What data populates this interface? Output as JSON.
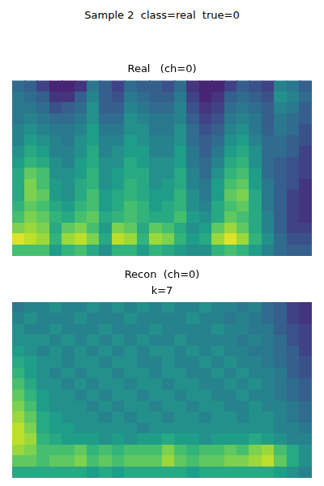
{
  "title": "Sample 2  class=real  true=0",
  "chart_data": [
    {
      "type": "heatmap",
      "title": "Real   (ch=0)",
      "tick_labels": false,
      "zlim": [
        0,
        1
      ],
      "cells": [
        [
          0.35,
          0.3,
          0.2,
          0.1,
          0.1,
          0.15,
          0.4,
          0.3,
          0.2,
          0.35,
          0.3,
          0.3,
          0.25,
          0.35,
          0.15,
          0.1,
          0.1,
          0.2,
          0.3,
          0.25,
          0.2,
          0.45,
          0.4,
          0.3
        ],
        [
          0.4,
          0.35,
          0.3,
          0.15,
          0.15,
          0.3,
          0.45,
          0.3,
          0.25,
          0.4,
          0.35,
          0.3,
          0.3,
          0.4,
          0.2,
          0.1,
          0.15,
          0.3,
          0.35,
          0.3,
          0.25,
          0.5,
          0.45,
          0.35
        ],
        [
          0.4,
          0.4,
          0.35,
          0.25,
          0.3,
          0.35,
          0.5,
          0.3,
          0.3,
          0.45,
          0.4,
          0.35,
          0.35,
          0.45,
          0.25,
          0.15,
          0.2,
          0.35,
          0.4,
          0.35,
          0.3,
          0.45,
          0.4,
          0.3
        ],
        [
          0.4,
          0.45,
          0.4,
          0.35,
          0.35,
          0.4,
          0.5,
          0.35,
          0.35,
          0.5,
          0.45,
          0.4,
          0.4,
          0.45,
          0.3,
          0.2,
          0.25,
          0.4,
          0.45,
          0.4,
          0.3,
          0.4,
          0.35,
          0.3
        ],
        [
          0.45,
          0.5,
          0.45,
          0.4,
          0.4,
          0.45,
          0.55,
          0.4,
          0.4,
          0.5,
          0.5,
          0.4,
          0.4,
          0.5,
          0.35,
          0.25,
          0.3,
          0.45,
          0.5,
          0.4,
          0.3,
          0.4,
          0.35,
          0.25
        ],
        [
          0.45,
          0.55,
          0.5,
          0.45,
          0.4,
          0.5,
          0.55,
          0.45,
          0.45,
          0.55,
          0.5,
          0.45,
          0.45,
          0.5,
          0.35,
          0.3,
          0.35,
          0.5,
          0.55,
          0.45,
          0.35,
          0.35,
          0.3,
          0.25
        ],
        [
          0.5,
          0.6,
          0.55,
          0.45,
          0.45,
          0.5,
          0.6,
          0.45,
          0.5,
          0.55,
          0.55,
          0.45,
          0.45,
          0.55,
          0.4,
          0.3,
          0.4,
          0.55,
          0.6,
          0.5,
          0.35,
          0.35,
          0.3,
          0.2
        ],
        [
          0.55,
          0.65,
          0.6,
          0.5,
          0.45,
          0.55,
          0.6,
          0.5,
          0.5,
          0.6,
          0.55,
          0.5,
          0.5,
          0.55,
          0.4,
          0.35,
          0.45,
          0.6,
          0.65,
          0.5,
          0.35,
          0.3,
          0.25,
          0.2
        ],
        [
          0.6,
          0.75,
          0.7,
          0.5,
          0.5,
          0.55,
          0.65,
          0.5,
          0.55,
          0.6,
          0.6,
          0.5,
          0.5,
          0.6,
          0.45,
          0.35,
          0.5,
          0.65,
          0.7,
          0.55,
          0.35,
          0.3,
          0.25,
          0.2
        ],
        [
          0.6,
          0.8,
          0.7,
          0.55,
          0.5,
          0.6,
          0.65,
          0.5,
          0.55,
          0.65,
          0.6,
          0.5,
          0.55,
          0.6,
          0.45,
          0.4,
          0.55,
          0.7,
          0.75,
          0.55,
          0.4,
          0.3,
          0.25,
          0.15
        ],
        [
          0.6,
          0.8,
          0.75,
          0.55,
          0.5,
          0.6,
          0.7,
          0.55,
          0.6,
          0.65,
          0.6,
          0.55,
          0.55,
          0.65,
          0.5,
          0.4,
          0.55,
          0.75,
          0.8,
          0.6,
          0.4,
          0.3,
          0.2,
          0.15
        ],
        [
          0.65,
          0.75,
          0.7,
          0.6,
          0.55,
          0.65,
          0.7,
          0.55,
          0.6,
          0.7,
          0.65,
          0.55,
          0.6,
          0.65,
          0.5,
          0.45,
          0.6,
          0.7,
          0.75,
          0.6,
          0.4,
          0.3,
          0.2,
          0.15
        ],
        [
          0.7,
          0.8,
          0.75,
          0.65,
          0.6,
          0.7,
          0.75,
          0.6,
          0.65,
          0.7,
          0.65,
          0.6,
          0.6,
          0.7,
          0.55,
          0.5,
          0.6,
          0.75,
          0.7,
          0.6,
          0.45,
          0.3,
          0.2,
          0.15
        ],
        [
          0.8,
          0.85,
          0.8,
          0.6,
          0.75,
          0.8,
          0.7,
          0.55,
          0.8,
          0.75,
          0.6,
          0.75,
          0.7,
          0.6,
          0.5,
          0.55,
          0.75,
          0.85,
          0.75,
          0.6,
          0.45,
          0.3,
          0.2,
          0.2
        ],
        [
          0.95,
          0.9,
          0.85,
          0.65,
          0.85,
          0.9,
          0.8,
          0.6,
          0.9,
          0.85,
          0.65,
          0.85,
          0.8,
          0.65,
          0.55,
          0.6,
          0.85,
          0.95,
          0.85,
          0.65,
          0.5,
          0.35,
          0.25,
          0.25
        ],
        [
          0.7,
          0.7,
          0.7,
          0.55,
          0.65,
          0.7,
          0.6,
          0.5,
          0.65,
          0.65,
          0.55,
          0.65,
          0.6,
          0.55,
          0.5,
          0.5,
          0.65,
          0.7,
          0.65,
          0.55,
          0.45,
          0.35,
          0.3,
          0.3
        ]
      ]
    },
    {
      "type": "heatmap",
      "title": "Recon  (ch=0)\nk=7",
      "tick_labels": false,
      "zlim": [
        0,
        1
      ],
      "cells": [
        [
          0.4,
          0.45,
          0.45,
          0.5,
          0.45,
          0.45,
          0.5,
          0.45,
          0.5,
          0.45,
          0.5,
          0.45,
          0.5,
          0.45,
          0.45,
          0.5,
          0.45,
          0.45,
          0.4,
          0.45,
          0.35,
          0.3,
          0.2,
          0.15
        ],
        [
          0.45,
          0.5,
          0.45,
          0.45,
          0.45,
          0.5,
          0.45,
          0.45,
          0.45,
          0.5,
          0.45,
          0.45,
          0.45,
          0.45,
          0.5,
          0.45,
          0.45,
          0.4,
          0.45,
          0.4,
          0.35,
          0.3,
          0.2,
          0.15
        ],
        [
          0.5,
          0.45,
          0.45,
          0.5,
          0.45,
          0.45,
          0.45,
          0.5,
          0.45,
          0.45,
          0.45,
          0.5,
          0.45,
          0.45,
          0.45,
          0.45,
          0.5,
          0.45,
          0.45,
          0.4,
          0.4,
          0.3,
          0.25,
          0.2
        ],
        [
          0.5,
          0.5,
          0.5,
          0.45,
          0.5,
          0.45,
          0.5,
          0.45,
          0.5,
          0.45,
          0.5,
          0.45,
          0.45,
          0.5,
          0.45,
          0.45,
          0.45,
          0.45,
          0.4,
          0.45,
          0.4,
          0.35,
          0.25,
          0.2
        ],
        [
          0.55,
          0.5,
          0.45,
          0.5,
          0.45,
          0.5,
          0.45,
          0.5,
          0.45,
          0.5,
          0.45,
          0.5,
          0.5,
          0.45,
          0.5,
          0.45,
          0.5,
          0.45,
          0.45,
          0.4,
          0.4,
          0.35,
          0.3,
          0.2
        ],
        [
          0.6,
          0.55,
          0.5,
          0.5,
          0.45,
          0.5,
          0.5,
          0.45,
          0.5,
          0.5,
          0.45,
          0.45,
          0.5,
          0.45,
          0.45,
          0.5,
          0.45,
          0.5,
          0.45,
          0.45,
          0.4,
          0.35,
          0.3,
          0.25
        ],
        [
          0.65,
          0.55,
          0.5,
          0.45,
          0.5,
          0.45,
          0.5,
          0.5,
          0.45,
          0.5,
          0.5,
          0.45,
          0.5,
          0.5,
          0.45,
          0.45,
          0.5,
          0.45,
          0.5,
          0.45,
          0.45,
          0.4,
          0.3,
          0.25
        ],
        [
          0.7,
          0.6,
          0.5,
          0.5,
          0.45,
          0.5,
          0.45,
          0.5,
          0.5,
          0.45,
          0.5,
          0.5,
          0.45,
          0.5,
          0.5,
          0.45,
          0.45,
          0.5,
          0.45,
          0.5,
          0.45,
          0.4,
          0.35,
          0.3
        ],
        [
          0.75,
          0.65,
          0.55,
          0.5,
          0.5,
          0.45,
          0.5,
          0.45,
          0.5,
          0.5,
          0.45,
          0.5,
          0.5,
          0.45,
          0.5,
          0.5,
          0.45,
          0.45,
          0.5,
          0.45,
          0.45,
          0.4,
          0.35,
          0.3
        ],
        [
          0.8,
          0.7,
          0.55,
          0.5,
          0.5,
          0.5,
          0.45,
          0.5,
          0.45,
          0.5,
          0.5,
          0.45,
          0.5,
          0.5,
          0.45,
          0.5,
          0.5,
          0.45,
          0.45,
          0.5,
          0.45,
          0.45,
          0.4,
          0.35
        ],
        [
          0.85,
          0.75,
          0.6,
          0.55,
          0.5,
          0.5,
          0.5,
          0.45,
          0.5,
          0.45,
          0.5,
          0.5,
          0.45,
          0.5,
          0.5,
          0.45,
          0.5,
          0.5,
          0.45,
          0.5,
          0.5,
          0.45,
          0.4,
          0.35
        ],
        [
          0.9,
          0.8,
          0.6,
          0.55,
          0.55,
          0.5,
          0.5,
          0.5,
          0.5,
          0.5,
          0.45,
          0.5,
          0.5,
          0.5,
          0.5,
          0.5,
          0.5,
          0.5,
          0.5,
          0.5,
          0.5,
          0.45,
          0.45,
          0.4
        ],
        [
          0.9,
          0.85,
          0.65,
          0.6,
          0.55,
          0.55,
          0.55,
          0.5,
          0.55,
          0.5,
          0.55,
          0.55,
          0.6,
          0.55,
          0.55,
          0.5,
          0.55,
          0.55,
          0.55,
          0.6,
          0.55,
          0.5,
          0.45,
          0.45
        ],
        [
          0.85,
          0.8,
          0.7,
          0.7,
          0.7,
          0.75,
          0.65,
          0.7,
          0.65,
          0.7,
          0.7,
          0.7,
          0.8,
          0.7,
          0.65,
          0.7,
          0.7,
          0.75,
          0.7,
          0.8,
          0.85,
          0.7,
          0.6,
          0.5
        ],
        [
          0.75,
          0.75,
          0.7,
          0.75,
          0.75,
          0.8,
          0.7,
          0.75,
          0.7,
          0.75,
          0.75,
          0.75,
          0.85,
          0.75,
          0.7,
          0.75,
          0.75,
          0.8,
          0.8,
          0.85,
          0.9,
          0.75,
          0.6,
          0.5
        ],
        [
          0.6,
          0.6,
          0.6,
          0.6,
          0.6,
          0.6,
          0.55,
          0.6,
          0.55,
          0.6,
          0.6,
          0.6,
          0.6,
          0.6,
          0.55,
          0.6,
          0.6,
          0.6,
          0.6,
          0.6,
          0.6,
          0.55,
          0.5,
          0.45
        ]
      ]
    }
  ]
}
